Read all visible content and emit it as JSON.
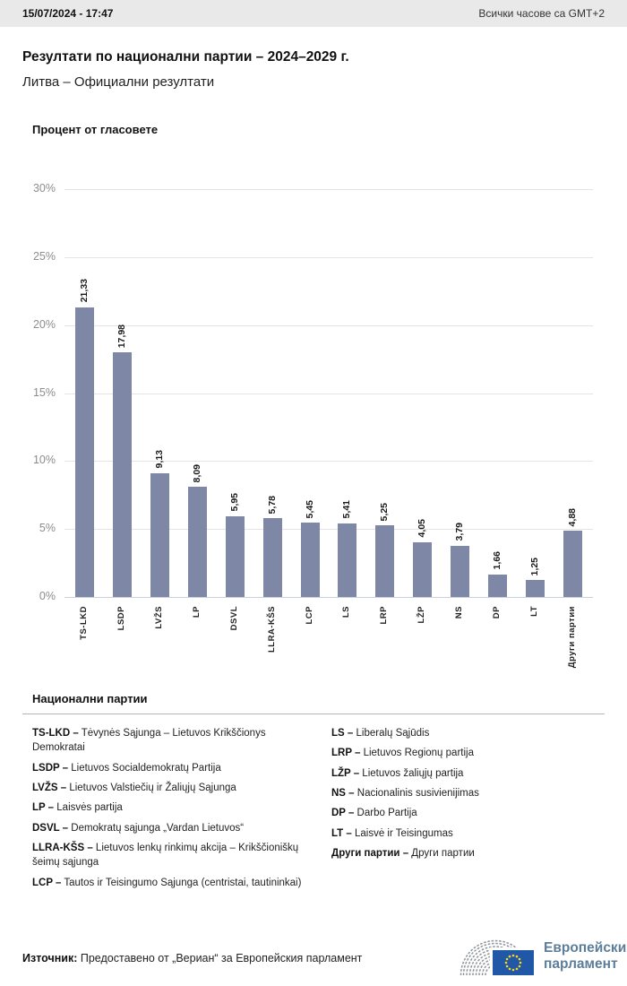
{
  "header": {
    "datetime": "15/07/2024 - 17:47",
    "timezone_note": "Всички часове са GMT+2"
  },
  "title": "Резултати по национални партии – 2024–2029 г.",
  "subtitle": "Литва – Официални резултати",
  "chart_data": {
    "type": "bar",
    "title": "Процент от гласовете",
    "categories": [
      "TS-LKD",
      "LSDP",
      "LVŽS",
      "LP",
      "DSVL",
      "LLRA-KŠS",
      "LCP",
      "LS",
      "LRP",
      "LŽP",
      "NS",
      "DP",
      "LT",
      "Други партии"
    ],
    "values": [
      21.33,
      17.98,
      9.13,
      8.09,
      5.95,
      5.78,
      5.45,
      5.41,
      5.25,
      4.05,
      3.79,
      1.66,
      1.25,
      4.88
    ],
    "value_labels": [
      "21,33",
      "17,98",
      "9,13",
      "8,09",
      "5,95",
      "5,78",
      "5,45",
      "5,41",
      "5,25",
      "4,05",
      "3,79",
      "1,66",
      "1,25",
      "4,88"
    ],
    "ylim": [
      0,
      30
    ],
    "yticks": [
      "30%",
      "25%",
      "20%",
      "15%",
      "10%",
      "5%",
      "0%"
    ],
    "grid": true,
    "legend_position": "none",
    "bar_color": "#7e88a6"
  },
  "party_legend": {
    "heading": "Национални партии",
    "columns": [
      [
        {
          "abbr": "TS-LKD –",
          "name": "Tėvynės Sąjunga – Lietuvos Krikščionys Demokratai"
        },
        {
          "abbr": "LSDP –",
          "name": "Lietuvos Socialdemokratų Partija"
        },
        {
          "abbr": "LVŽS –",
          "name": "Lietuvos Valstiečių ir Žaliųjų Sąjunga"
        },
        {
          "abbr": "LP –",
          "name": "Laisvės partija"
        },
        {
          "abbr": "DSVL –",
          "name": "Demokratų sąjunga „Vardan Lietuvos“"
        },
        {
          "abbr": "LLRA-KŠS –",
          "name": "Lietuvos lenkų rinkimų akcija – Krikščioniškų šeimų sąjunga"
        },
        {
          "abbr": "LCP –",
          "name": "Tautos ir Teisingumo Sąjunga (centristai, tautininkai)"
        }
      ],
      [
        {
          "abbr": "LS –",
          "name": "Liberalų Sąjūdis"
        },
        {
          "abbr": "LRP –",
          "name": "Lietuvos Regionų partija"
        },
        {
          "abbr": "LŽP –",
          "name": "Lietuvos žaliųjų partija"
        },
        {
          "abbr": "NS –",
          "name": "Nacionalinis susivienijimas"
        },
        {
          "abbr": "DP –",
          "name": "Darbo Partija"
        },
        {
          "abbr": "LT –",
          "name": "Laisvė ir Teisingumas"
        },
        {
          "abbr": "Други партии –",
          "name": "Други партии"
        }
      ]
    ]
  },
  "footer": {
    "source_label": "Източник:",
    "source_text": "Предоставено от „Вериан“ за Европейския парламент",
    "logo": {
      "line1": "Европейски",
      "line2": "парламент"
    }
  },
  "colors": {
    "bar": "#7e88a6",
    "gridline": "#e4e4e4",
    "axis_line": "#c9d1de",
    "flag_blue": "#2057a7",
    "star_yellow": "#ffd617",
    "hemicycle_gray": "#8e949b",
    "logo_text": "#5d7d98"
  }
}
